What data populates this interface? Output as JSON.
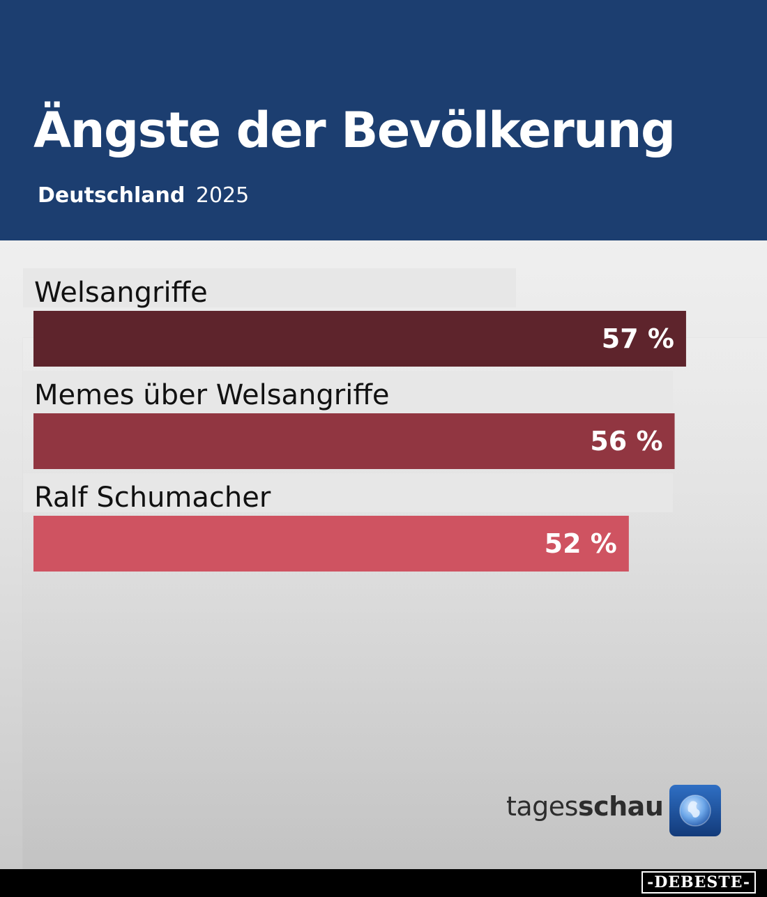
{
  "header": {
    "title": "Ängste der Bevölkerung",
    "region": "Deutschland",
    "year": "2025"
  },
  "colors": {
    "header_bg": "#1c3e70",
    "bar_1": "#5e242c",
    "bar_2": "#913641",
    "bar_3": "#cf5361"
  },
  "chart_data": {
    "type": "bar",
    "orientation": "horizontal",
    "title": "Ängste der Bevölkerung",
    "subtitle": "Deutschland 2025",
    "unit": "%",
    "categories": [
      "Welsangriffe",
      "Memes über Welsangriffe",
      "Ralf Schumacher"
    ],
    "values": [
      57,
      56,
      52
    ],
    "value_labels": [
      "57 %",
      "56 %",
      "52 %"
    ],
    "xlim": [
      0,
      100
    ],
    "grid": false,
    "legend": "none"
  },
  "branding": {
    "logo_text_prefix": "tages",
    "logo_text_bold": "schau",
    "logo_icon": "tagesschau-globe-icon",
    "watermark": "-DEBESTE-"
  }
}
